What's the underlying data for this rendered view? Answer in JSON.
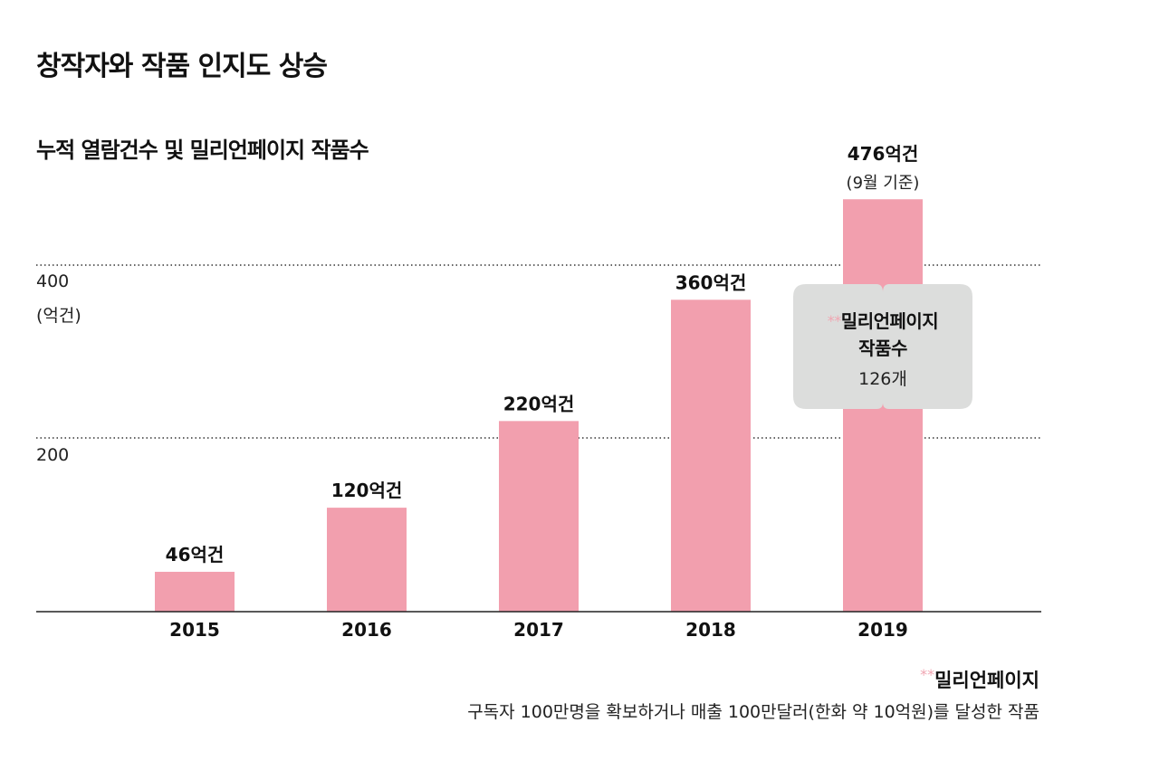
{
  "header": {
    "title": "창작자와 작품 인지도 상승",
    "subtitle": "누적 열람건수 및 밀리언페이지 작품수"
  },
  "axis": {
    "y400": "400",
    "y_unit": "(억건)",
    "y200": "200"
  },
  "colors": {
    "bar": "#f29fae",
    "callout_bg": "#dcdddc",
    "asterisk": "#f0a6b2",
    "gridline": "#333333"
  },
  "chart_data": {
    "type": "bar",
    "title": "누적 열람건수 및 밀리언페이지 작품수",
    "ylabel": "(억건)",
    "ylim": [
      0,
      476
    ],
    "yticks": [
      200,
      400
    ],
    "grid": "dotted horizontal at 200 and 400",
    "categories": [
      "2015",
      "2016",
      "2017",
      "2018",
      "2019"
    ],
    "values": [
      46,
      120,
      220,
      360,
      476
    ],
    "labels": [
      "46억건",
      "120억건",
      "220억건",
      "360억건",
      "476억건"
    ],
    "notes": [
      "",
      "",
      "",
      "",
      "(9월 기준)"
    ]
  },
  "callout": {
    "asterisk": "**",
    "line1": "밀리언페이지",
    "line2": "작품수",
    "line3": "126개"
  },
  "footnote": {
    "asterisk": "**",
    "term": "밀리언페이지",
    "definition": "구독자 100만명을 확보하거나 매출 100만달러(한화 약 10억원)를 달성한 작품"
  }
}
